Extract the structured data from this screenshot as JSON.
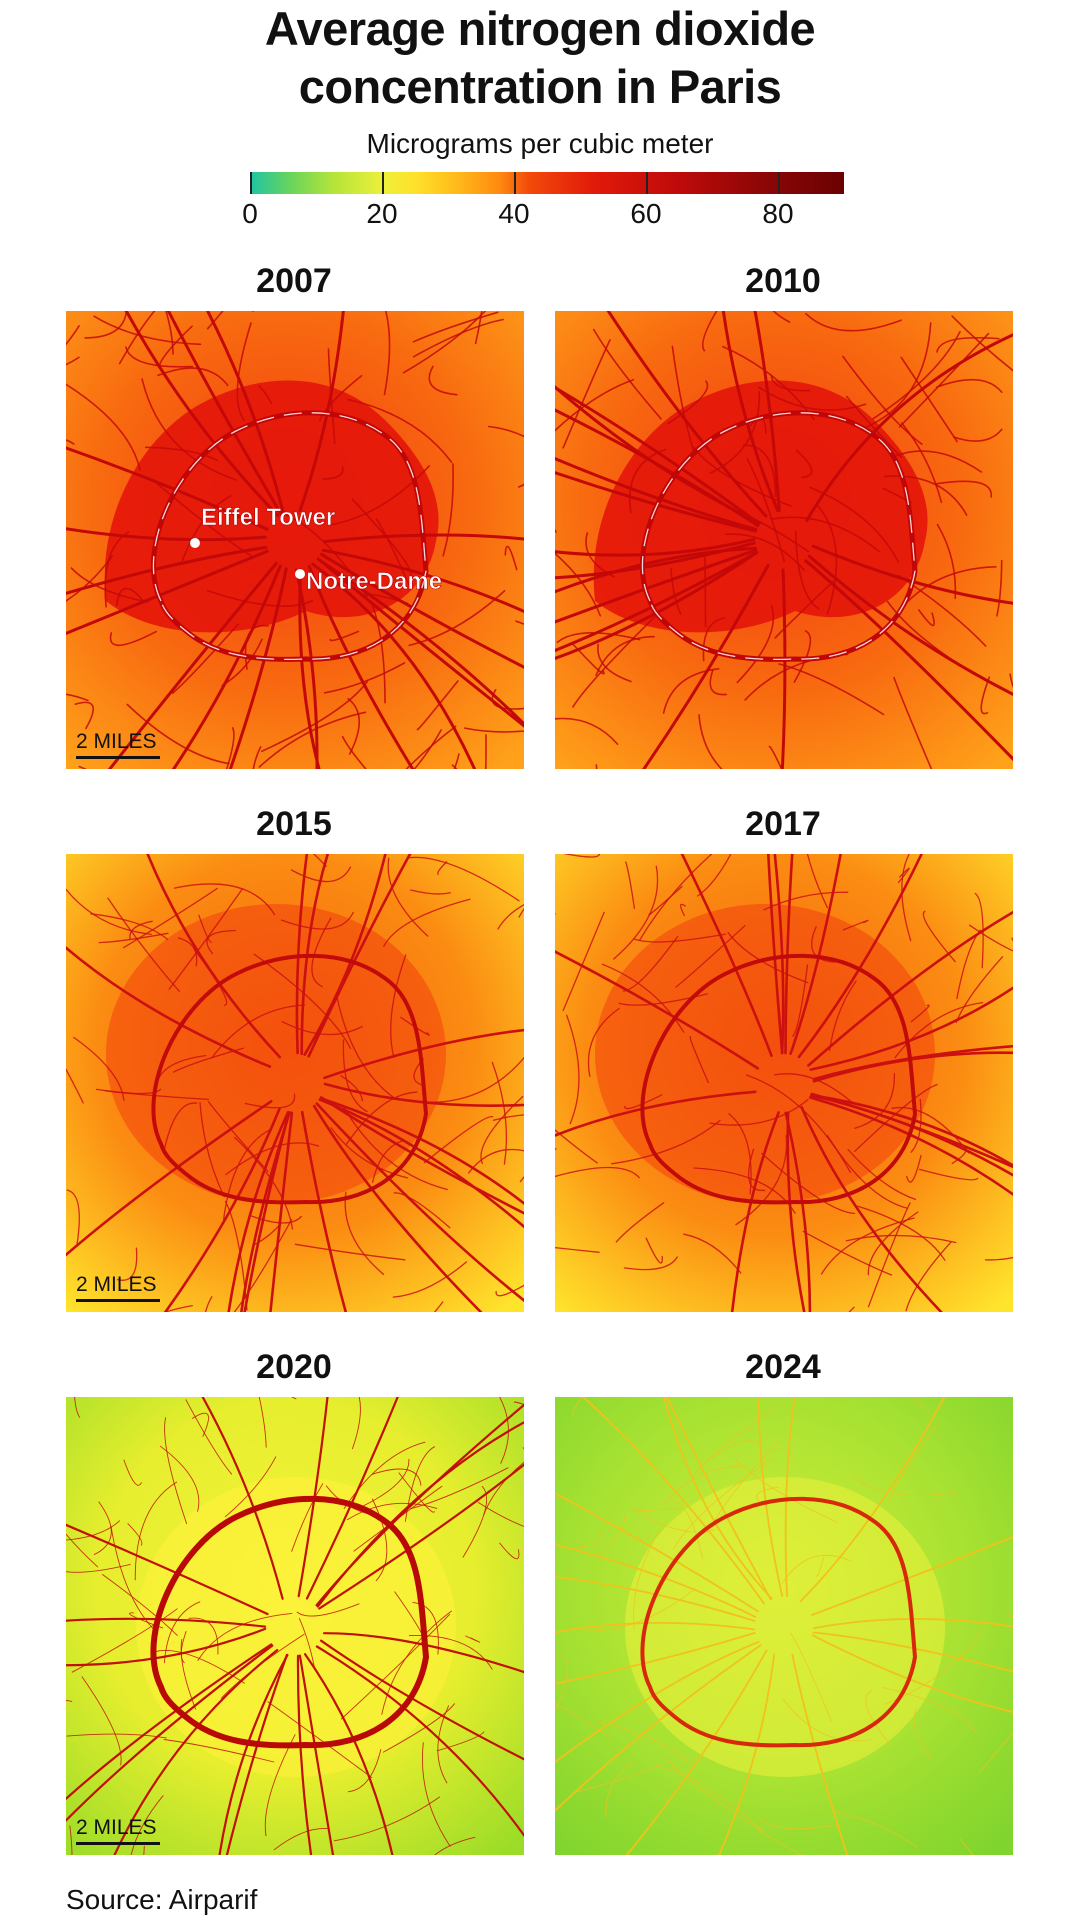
{
  "title_line1": "Average nitrogen dioxide",
  "title_line2": "concentration in Paris",
  "legend": {
    "label": "Micrograms per cubic meter",
    "ticks": [
      {
        "value": 0,
        "label": "0"
      },
      {
        "value": 20,
        "label": "20"
      },
      {
        "value": 40,
        "label": "40"
      },
      {
        "value": 60,
        "label": "60"
      },
      {
        "value": 80,
        "label": "80"
      }
    ],
    "max": 90
  },
  "scale_label": "2 MILES",
  "landmarks": {
    "eiffel": "Eiffel Tower",
    "notre_dame": "Notre-Dame"
  },
  "panels": [
    {
      "year": "2007",
      "level": "very-high",
      "show_scale": true,
      "show_landmarks": true
    },
    {
      "year": "2010",
      "level": "very-high",
      "show_scale": false,
      "show_landmarks": false
    },
    {
      "year": "2015",
      "level": "high",
      "show_scale": true,
      "show_landmarks": false
    },
    {
      "year": "2017",
      "level": "high",
      "show_scale": false,
      "show_landmarks": false
    },
    {
      "year": "2020",
      "level": "moderate",
      "show_scale": true,
      "show_landmarks": false
    },
    {
      "year": "2024",
      "level": "low",
      "show_scale": false,
      "show_landmarks": false
    }
  ],
  "colors": {
    "road_high": "#c00808",
    "road_low": "#e22a10"
  },
  "source": "Source: Airparif"
}
